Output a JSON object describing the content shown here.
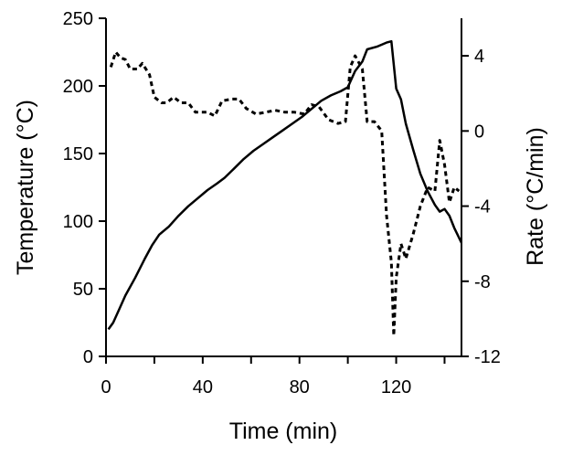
{
  "chart_data": {
    "type": "line",
    "xlabel": "Time (min)",
    "ylabel_left": "Temperature (°C)",
    "ylabel_right": "Rate (°C/min)",
    "xlim": [
      0,
      147
    ],
    "x_ticks": [
      0,
      40,
      80,
      120
    ],
    "y_left_lim": [
      0,
      250
    ],
    "y_left_ticks": [
      0,
      50,
      100,
      150,
      200,
      250
    ],
    "y_right_lim": [
      -12,
      6
    ],
    "y_right_ticks": [
      -12,
      -8,
      -4,
      0,
      4
    ],
    "grid": false,
    "legend": "none",
    "series": [
      {
        "axis": "left",
        "style": "solid",
        "color": "#000000",
        "points": [
          [
            1,
            20
          ],
          [
            3,
            25
          ],
          [
            5,
            33
          ],
          [
            8,
            45
          ],
          [
            12,
            58
          ],
          [
            16,
            72
          ],
          [
            19,
            82
          ],
          [
            22,
            90
          ],
          [
            26,
            96
          ],
          [
            30,
            104
          ],
          [
            34,
            111
          ],
          [
            38,
            117
          ],
          [
            42,
            123
          ],
          [
            46,
            128
          ],
          [
            49,
            132
          ],
          [
            53,
            139
          ],
          [
            57,
            146
          ],
          [
            61,
            152
          ],
          [
            65,
            157
          ],
          [
            69,
            162
          ],
          [
            73,
            167
          ],
          [
            77,
            172
          ],
          [
            81,
            177
          ],
          [
            85,
            183
          ],
          [
            89,
            189
          ],
          [
            93,
            193
          ],
          [
            97,
            196
          ],
          [
            100,
            199
          ],
          [
            103,
            211
          ],
          [
            106,
            218
          ],
          [
            108,
            227
          ],
          [
            112,
            229
          ],
          [
            116,
            232
          ],
          [
            118,
            233
          ],
          [
            120,
            198
          ],
          [
            122,
            190
          ],
          [
            124,
            172
          ],
          [
            127,
            153
          ],
          [
            130,
            135
          ],
          [
            133,
            122
          ],
          [
            136,
            112
          ],
          [
            138,
            107
          ],
          [
            140,
            109
          ],
          [
            142,
            104
          ],
          [
            144,
            95
          ],
          [
            147,
            84
          ]
        ]
      },
      {
        "axis": "right",
        "style": "dashed",
        "color": "#000000",
        "points": [
          [
            2,
            3.4
          ],
          [
            4,
            4.2
          ],
          [
            6,
            3.9
          ],
          [
            8,
            3.8
          ],
          [
            10,
            3.3
          ],
          [
            13,
            3.3
          ],
          [
            15,
            3.6
          ],
          [
            18,
            3.0
          ],
          [
            20,
            1.8
          ],
          [
            23,
            1.5
          ],
          [
            25,
            1.5
          ],
          [
            28,
            1.8
          ],
          [
            31,
            1.5
          ],
          [
            34,
            1.5
          ],
          [
            37,
            1.0
          ],
          [
            42,
            1.0
          ],
          [
            45,
            0.8
          ],
          [
            48,
            1.6
          ],
          [
            52,
            1.7
          ],
          [
            55,
            1.7
          ],
          [
            58,
            1.2
          ],
          [
            62,
            0.9
          ],
          [
            66,
            1.0
          ],
          [
            70,
            1.1
          ],
          [
            74,
            1.0
          ],
          [
            78,
            1.0
          ],
          [
            82,
            0.9
          ],
          [
            85,
            1.4
          ],
          [
            88,
            1.3
          ],
          [
            92,
            0.6
          ],
          [
            96,
            0.4
          ],
          [
            99,
            0.5
          ],
          [
            101,
            3.4
          ],
          [
            103,
            4.0
          ],
          [
            106,
            3.3
          ],
          [
            108,
            0.5
          ],
          [
            111,
            0.5
          ],
          [
            114,
            0.0
          ],
          [
            116,
            -4.5
          ],
          [
            118,
            -7.0
          ],
          [
            119,
            -10.9
          ],
          [
            120,
            -7.8
          ],
          [
            122,
            -6.0
          ],
          [
            124,
            -6.8
          ],
          [
            127,
            -5.5
          ],
          [
            130,
            -4.0
          ],
          [
            133,
            -3.0
          ],
          [
            136,
            -3.2
          ],
          [
            138,
            -0.5
          ],
          [
            140,
            -1.8
          ],
          [
            142,
            -3.8
          ],
          [
            144,
            -3.0
          ],
          [
            146,
            -3.2
          ]
        ]
      }
    ]
  }
}
